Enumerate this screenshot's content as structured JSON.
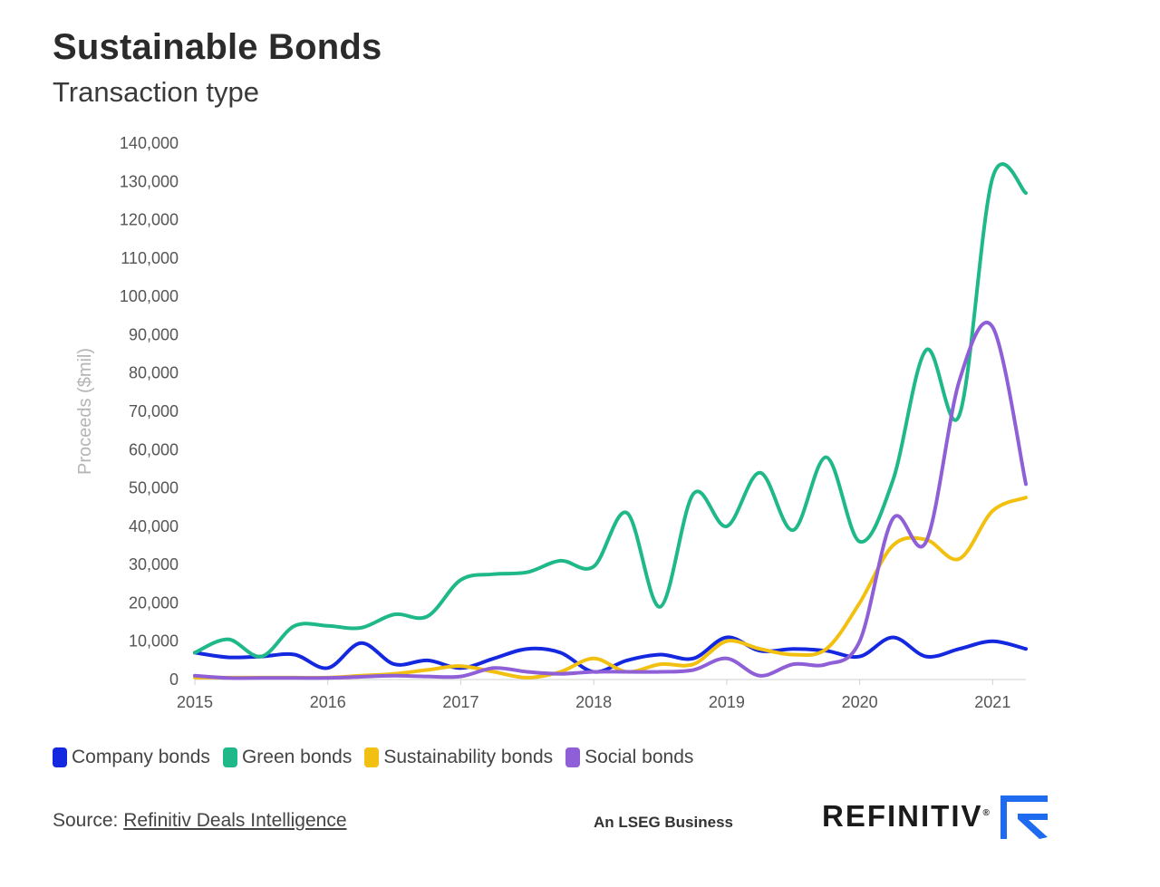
{
  "header": {
    "title": "Sustainable Bonds",
    "subtitle": "Transaction type"
  },
  "chart_data": {
    "type": "line",
    "ylabel": "Proceeds ($mil)",
    "xlabel": "",
    "ylim": [
      0,
      140000
    ],
    "yticks": [
      "140,000",
      "130,000",
      "120,000",
      "110,000",
      "100,000",
      "90,000",
      "80,000",
      "70,000",
      "60,000",
      "50,000",
      "40,000",
      "30,000",
      "20,000",
      "10,000",
      "0"
    ],
    "ytick_values": [
      140000,
      130000,
      120000,
      110000,
      100000,
      90000,
      80000,
      70000,
      60000,
      50000,
      40000,
      30000,
      20000,
      10000,
      0
    ],
    "xlim": [
      2015,
      2021.25
    ],
    "xticks": [
      "2015",
      "2016",
      "2017",
      "2018",
      "2019",
      "2020",
      "2021"
    ],
    "xtick_values": [
      2015,
      2016,
      2017,
      2018,
      2019,
      2020,
      2021
    ],
    "grid": false,
    "legend": "bottom-left",
    "x": [
      2015.0,
      2015.25,
      2015.5,
      2015.75,
      2016.0,
      2016.25,
      2016.5,
      2016.75,
      2017.0,
      2017.25,
      2017.5,
      2017.75,
      2018.0,
      2018.25,
      2018.5,
      2018.75,
      2019.0,
      2019.25,
      2019.5,
      2019.75,
      2020.0,
      2020.25,
      2020.5,
      2020.75,
      2021.0,
      2021.25
    ],
    "series": [
      {
        "name": "Company bonds",
        "color": "#1428e0",
        "values": [
          7000,
          5800,
          6000,
          6500,
          3000,
          9500,
          4000,
          5000,
          3000,
          5500,
          8000,
          7000,
          2000,
          5000,
          6500,
          5500,
          11000,
          7500,
          8000,
          7500,
          6000,
          11000,
          6000,
          8000,
          10000,
          8000
        ]
      },
      {
        "name": "Green bonds",
        "color": "#1fb889",
        "values": [
          7000,
          10500,
          6000,
          14000,
          14000,
          13500,
          17000,
          16500,
          26000,
          27500,
          28000,
          31000,
          29500,
          43500,
          19000,
          48500,
          40000,
          54000,
          39000,
          58000,
          36000,
          52000,
          86000,
          69000,
          131000,
          127000
        ]
      },
      {
        "name": "Sustainability bonds",
        "color": "#f2c010",
        "values": [
          500,
          500,
          500,
          500,
          500,
          1000,
          1500,
          2500,
          3500,
          2000,
          500,
          2000,
          5500,
          2000,
          4000,
          4000,
          10000,
          8000,
          6500,
          8000,
          20000,
          35000,
          36500,
          31500,
          44000,
          47500
        ]
      },
      {
        "name": "Social bonds",
        "color": "#8e5fd6",
        "values": [
          1000,
          400,
          400,
          400,
          400,
          700,
          1000,
          800,
          800,
          3000,
          2000,
          1500,
          2000,
          2000,
          2000,
          2500,
          5500,
          1000,
          4000,
          4000,
          10000,
          42000,
          36000,
          78000,
          92000,
          51000
        ]
      }
    ]
  },
  "footer": {
    "source_prefix": "Source: ",
    "source_link": "Refinitiv Deals Intelligence",
    "lseg_text": "An LSEG Business",
    "brand_name": "REFINITIV",
    "brand_mark": "®"
  }
}
